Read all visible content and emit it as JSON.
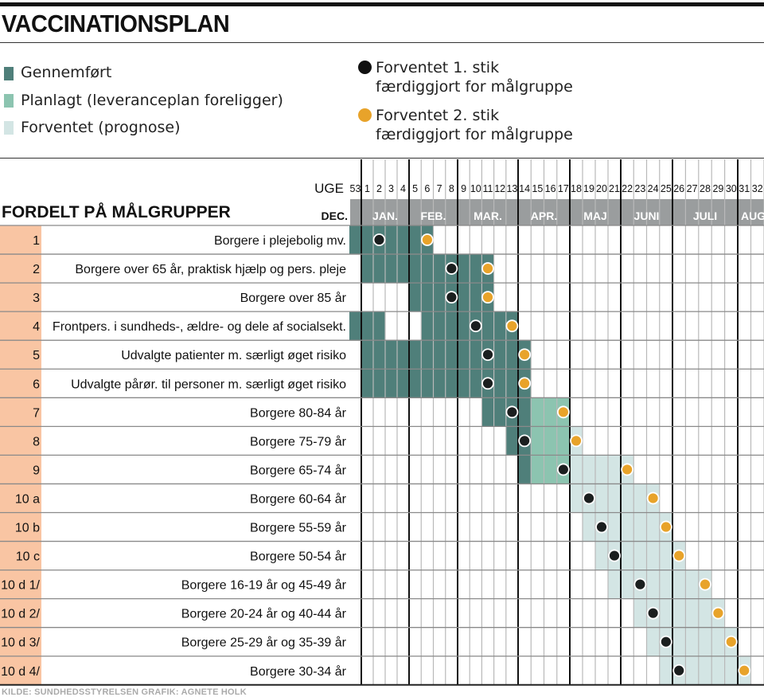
{
  "title": "VACCINATIONSPLAN",
  "legend": {
    "done": "Gennemført",
    "planned": "Planlagt (leveranceplan foreligger)",
    "forecast": "Forventet (prognose)",
    "first_dose_l1": "Forventet 1. stik",
    "first_dose_l2": "færdiggjort for målgruppe",
    "second_dose_l1": "Forventet 2. stik",
    "second_dose_l2": "færdiggjort for målgruppe"
  },
  "colors": {
    "done": "#4f7f7a",
    "planned": "#8cc4b0",
    "forecast": "#d3e5e4",
    "first_dose": "#1b1f1f",
    "second_dose": "#e8a32a",
    "group_column": "#f9c5a3",
    "month_band": "#9a9d9e"
  },
  "footer": "KILDE: SUNDHEDSSTYRELSEN   GRAFIK: AGNETE HOLK",
  "chart_data": {
    "type": "gantt",
    "subtitle": "FORDELT PÅ MÅLGRUPPER",
    "week_label": "UGE",
    "weeks": [
      53,
      1,
      2,
      3,
      4,
      5,
      6,
      7,
      8,
      9,
      10,
      11,
      12,
      13,
      14,
      15,
      16,
      17,
      18,
      19,
      20,
      21,
      22,
      23,
      24,
      25,
      26,
      27,
      28,
      29,
      30,
      31,
      32
    ],
    "months": [
      {
        "label": "DEC.",
        "from": 53,
        "to": 53
      },
      {
        "label": "JAN.",
        "from": 1,
        "to": 4
      },
      {
        "label": "FEB.",
        "from": 5,
        "to": 8
      },
      {
        "label": "MAR.",
        "from": 9,
        "to": 13
      },
      {
        "label": "APR.",
        "from": 14,
        "to": 17
      },
      {
        "label": "MAJ",
        "from": 18,
        "to": 21
      },
      {
        "label": "JUNI",
        "from": 22,
        "to": 25
      },
      {
        "label": "JULI",
        "from": 26,
        "to": 30
      },
      {
        "label": "AUG",
        "from": 31,
        "to": 32
      }
    ],
    "rows": [
      {
        "group": "1",
        "label": "Borgere i plejebolig mv.",
        "segments": [
          {
            "status": "done",
            "from": 53,
            "to": 6
          }
        ],
        "first_dose": 2,
        "second_dose": 6
      },
      {
        "group": "2",
        "label": "Borgere over 65 år, praktisk hjælp og pers. pleje",
        "segments": [
          {
            "status": "done",
            "from": 1,
            "to": 11
          }
        ],
        "first_dose": 8,
        "second_dose": 11
      },
      {
        "group": "3",
        "label": "Borgere over 85 år",
        "segments": [
          {
            "status": "done",
            "from": 5,
            "to": 11
          }
        ],
        "first_dose": 8,
        "second_dose": 11
      },
      {
        "group": "4",
        "label": "Frontpers. i sundheds-, ældre- og dele af socialsekt.",
        "segments": [
          {
            "status": "done",
            "from": 53,
            "to": 2
          },
          {
            "status": "done",
            "from": 6,
            "to": 13
          }
        ],
        "first_dose": 10,
        "second_dose": 13
      },
      {
        "group": "5",
        "label": "Udvalgte patienter m. særligt øget risiko",
        "segments": [
          {
            "status": "done",
            "from": 1,
            "to": 14
          }
        ],
        "first_dose": 11,
        "second_dose": 14
      },
      {
        "group": "6",
        "label": "Udvalgte pårør. til personer m. særligt øget risiko",
        "segments": [
          {
            "status": "done",
            "from": 1,
            "to": 14
          }
        ],
        "first_dose": 11,
        "second_dose": 14
      },
      {
        "group": "7",
        "label": "Borgere 80-84 år",
        "segments": [
          {
            "status": "done",
            "from": 11,
            "to": 14
          },
          {
            "status": "planned",
            "from": 15,
            "to": 17
          }
        ],
        "first_dose": 13,
        "second_dose": 17
      },
      {
        "group": "8",
        "label": "Borgere 75-79 år",
        "segments": [
          {
            "status": "done",
            "from": 13,
            "to": 14
          },
          {
            "status": "planned",
            "from": 15,
            "to": 17
          },
          {
            "status": "forecast",
            "from": 18,
            "to": 18
          }
        ],
        "first_dose": 14,
        "second_dose": 18
      },
      {
        "group": "9",
        "label": "Borgere 65-74 år",
        "segments": [
          {
            "status": "done",
            "from": 14,
            "to": 14
          },
          {
            "status": "planned",
            "from": 15,
            "to": 17
          },
          {
            "status": "forecast",
            "from": 18,
            "to": 22
          }
        ],
        "first_dose": 17,
        "second_dose": 22
      },
      {
        "group": "10 a",
        "label": "Borgere 60-64 år",
        "segments": [
          {
            "status": "forecast",
            "from": 18,
            "to": 24
          }
        ],
        "first_dose": 19,
        "second_dose": 24
      },
      {
        "group": "10 b",
        "label": "Borgere 55-59 år",
        "segments": [
          {
            "status": "forecast",
            "from": 19,
            "to": 25
          }
        ],
        "first_dose": 20,
        "second_dose": 25
      },
      {
        "group": "10 c",
        "label": "Borgere 50-54 år",
        "segments": [
          {
            "status": "forecast",
            "from": 20,
            "to": 26
          }
        ],
        "first_dose": 21,
        "second_dose": 26
      },
      {
        "group": "10 d 1/",
        "label": "Borgere 16-19 år og 45-49 år",
        "segments": [
          {
            "status": "forecast",
            "from": 21,
            "to": 28
          }
        ],
        "first_dose": 23,
        "second_dose": 28
      },
      {
        "group": "10 d 2/",
        "label": "Borgere 20-24 år og 40-44 år",
        "segments": [
          {
            "status": "forecast",
            "from": 23,
            "to": 29
          }
        ],
        "first_dose": 24,
        "second_dose": 29
      },
      {
        "group": "10 d 3/",
        "label": "Borgere 25-29 år og 35-39 år",
        "segments": [
          {
            "status": "forecast",
            "from": 24,
            "to": 30
          }
        ],
        "first_dose": 25,
        "second_dose": 30
      },
      {
        "group": "10 d 4/",
        "label": "Borgere 30-34 år",
        "segments": [
          {
            "status": "forecast",
            "from": 25,
            "to": 31
          }
        ],
        "first_dose": 26,
        "second_dose": 31
      }
    ]
  }
}
